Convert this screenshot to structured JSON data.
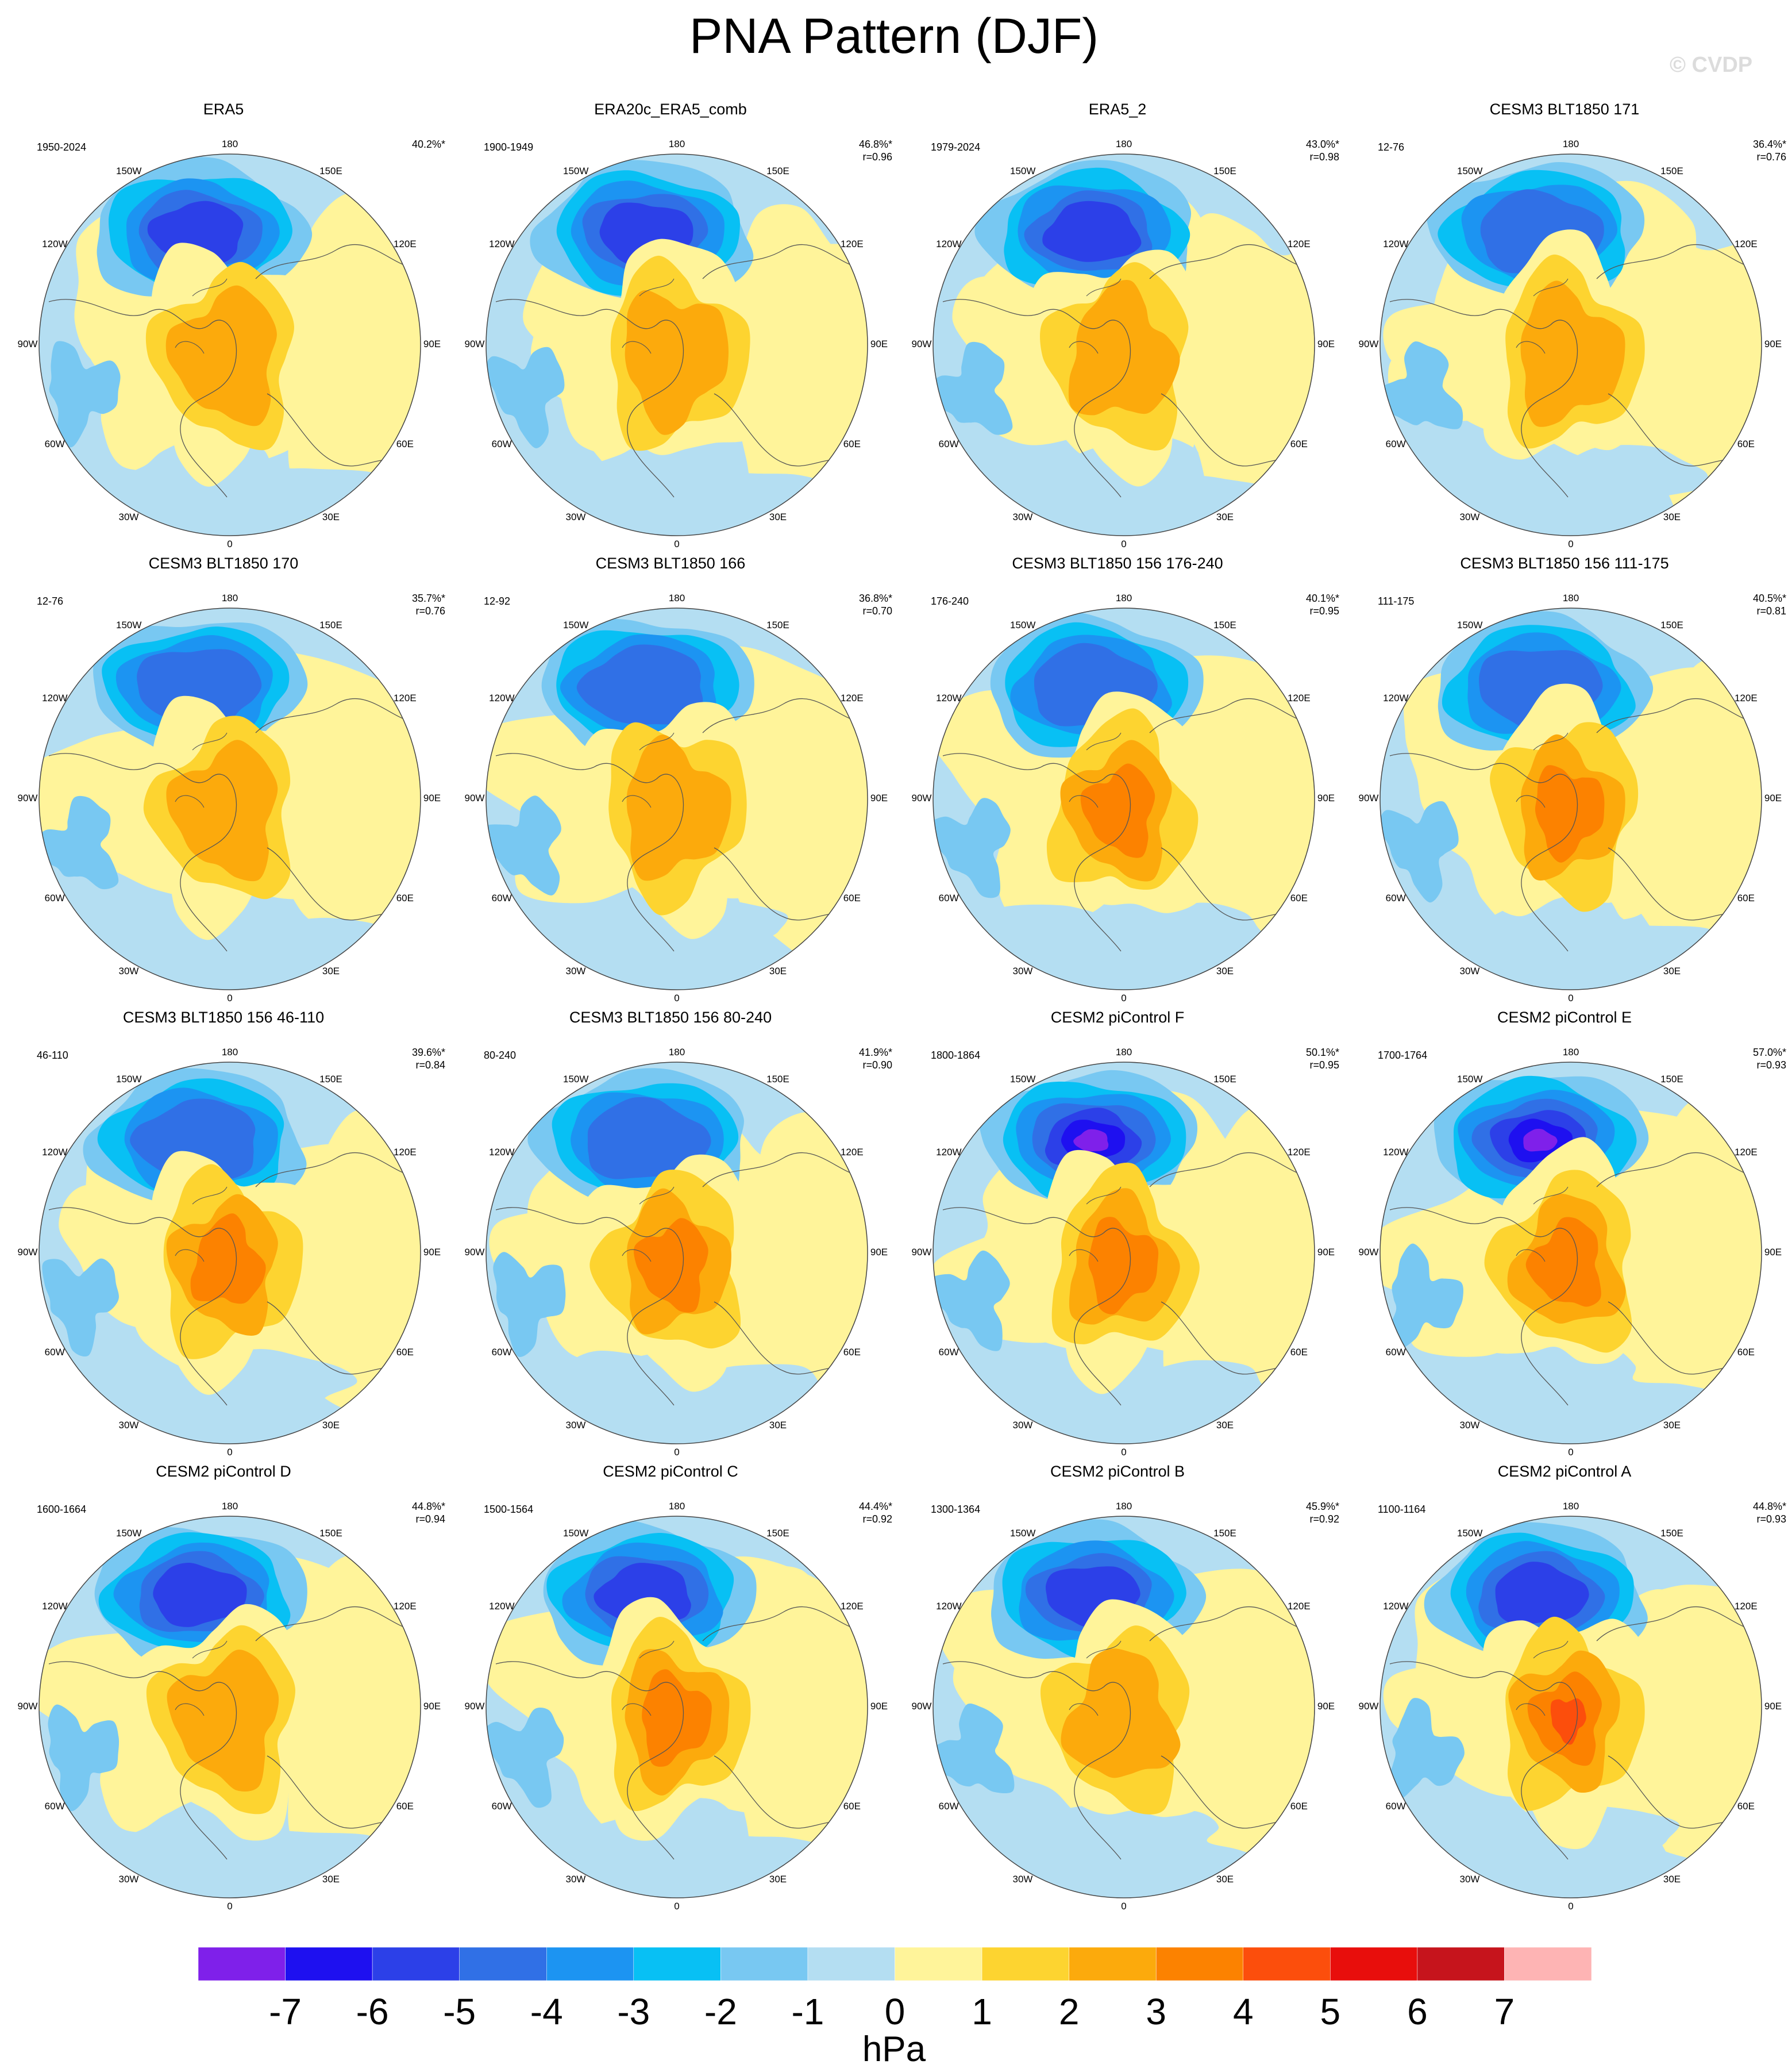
{
  "title": "PNA Pattern (DJF)",
  "watermark": "© CVDP",
  "units": "hPa",
  "lon_labels": [
    "180",
    "150E",
    "120E",
    "90E",
    "60E",
    "30E",
    "0",
    "30W",
    "60W",
    "90W",
    "120W",
    "150W"
  ],
  "colorbar": {
    "colors": [
      "#7f20ea",
      "#1e10f0",
      "#2c40e8",
      "#3070e6",
      "#1c94f2",
      "#08c0f4",
      "#78c8f2",
      "#b4def2",
      "#fff49a",
      "#fdd430",
      "#fcaa0c",
      "#fc8200",
      "#fc4e0c",
      "#e80e0c",
      "#c6141c",
      "#feb4b4"
    ],
    "labels": [
      "-7",
      "-6",
      "-5",
      "-4",
      "-3",
      "-2",
      "-1",
      "0",
      "1",
      "2",
      "3",
      "4",
      "5",
      "6",
      "7"
    ]
  },
  "panels": [
    {
      "title": "ERA5",
      "period": "1950-2024",
      "pct": "40.2%*",
      "r": ""
    },
    {
      "title": "ERA20c_ERA5_comb",
      "period": "1900-1949",
      "pct": "46.8%*",
      "r": "r=0.96"
    },
    {
      "title": "ERA5_2",
      "period": "1979-2024",
      "pct": "43.0%*",
      "r": "r=0.98"
    },
    {
      "title": "CESM3 BLT1850 171",
      "period": "12-76",
      "pct": "36.4%*",
      "r": "r=0.76"
    },
    {
      "title": "CESM3 BLT1850 170",
      "period": "12-76",
      "pct": "35.7%*",
      "r": "r=0.76"
    },
    {
      "title": "CESM3 BLT1850 166",
      "period": "12-92",
      "pct": "36.8%*",
      "r": "r=0.70"
    },
    {
      "title": "CESM3 BLT1850 156 176-240",
      "period": "176-240",
      "pct": "40.1%*",
      "r": "r=0.95"
    },
    {
      "title": "CESM3 BLT1850 156 111-175",
      "period": "111-175",
      "pct": "40.5%*",
      "r": "r=0.81"
    },
    {
      "title": "CESM3 BLT1850 156 46-110",
      "period": "46-110",
      "pct": "39.6%*",
      "r": "r=0.84"
    },
    {
      "title": "CESM3 BLT1850 156 80-240",
      "period": "80-240",
      "pct": "41.9%*",
      "r": "r=0.90"
    },
    {
      "title": "CESM2 piControl F",
      "period": "1800-1864",
      "pct": "50.1%*",
      "r": "r=0.95"
    },
    {
      "title": "CESM2 piControl E",
      "period": "1700-1764",
      "pct": "57.0%*",
      "r": "r=0.93"
    },
    {
      "title": "CESM2 piControl D",
      "period": "1600-1664",
      "pct": "44.8%*",
      "r": "r=0.94"
    },
    {
      "title": "CESM2 piControl C",
      "period": "1500-1564",
      "pct": "44.4%*",
      "r": "r=0.92"
    },
    {
      "title": "CESM2 piControl B",
      "period": "1300-1364",
      "pct": "45.9%*",
      "r": "r=0.92"
    },
    {
      "title": "CESM2 piControl A",
      "period": "1100-1164",
      "pct": "44.8%*",
      "r": "r=0.93"
    }
  ]
}
